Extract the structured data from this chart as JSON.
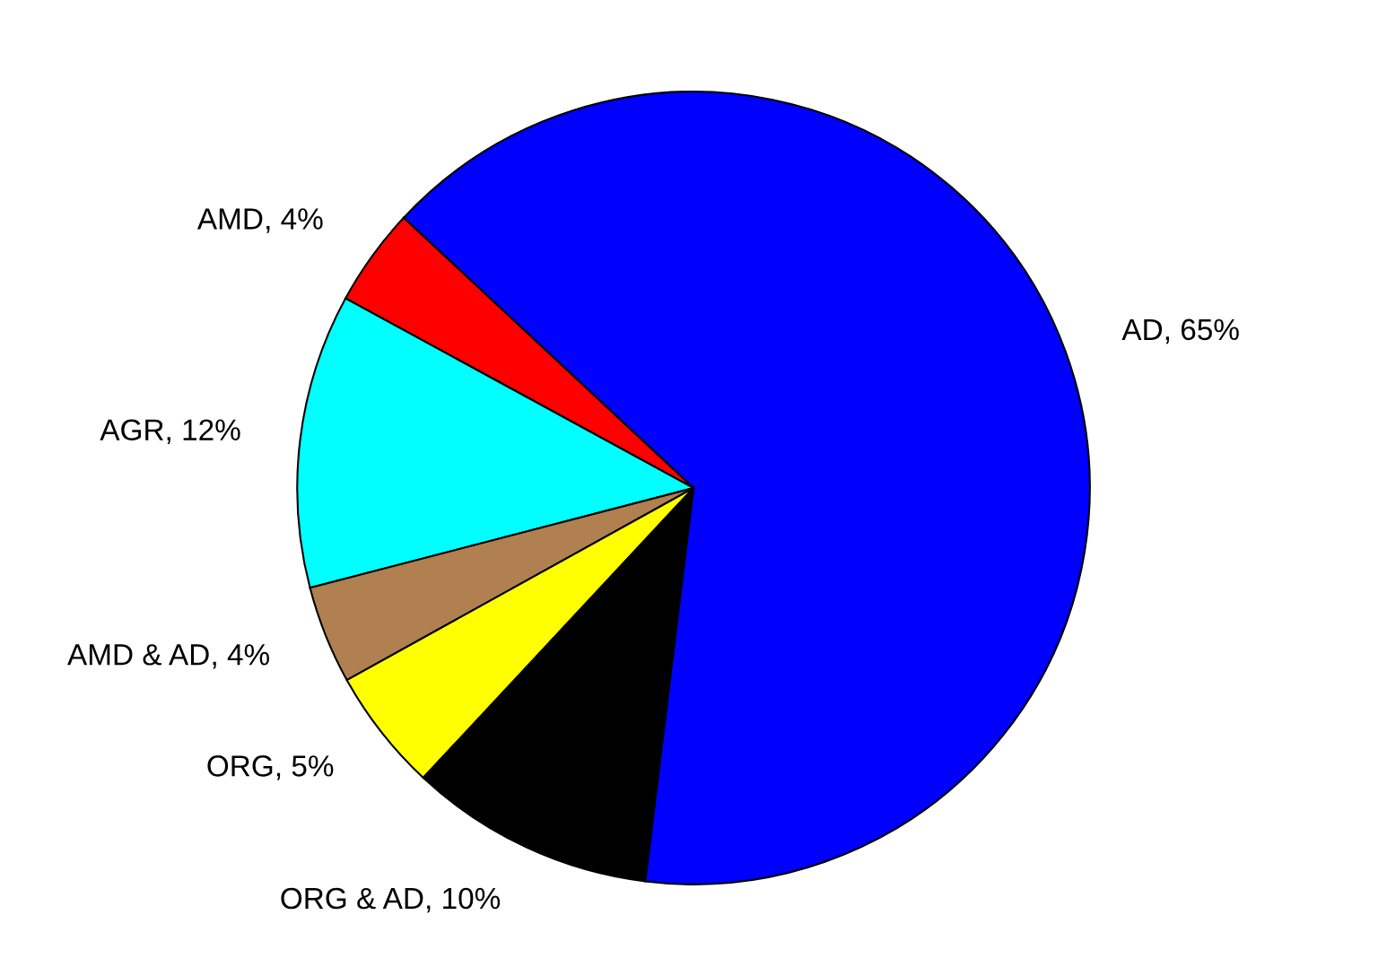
{
  "chart_data": {
    "type": "pie",
    "categories": [
      "AD",
      "AMD",
      "AGR",
      "AMD & AD",
      "ORG",
      "ORG & AD"
    ],
    "values": [
      65,
      4,
      12,
      4,
      5,
      10
    ],
    "value_labels": [
      ", 65%",
      ", 4%",
      ", 12%",
      ", 4%",
      ", 5%",
      ", 10%"
    ],
    "colors": [
      "#0000ff",
      "#ff0000",
      "#00ffff",
      "#b08050",
      "#ffff00",
      "#000000"
    ]
  }
}
